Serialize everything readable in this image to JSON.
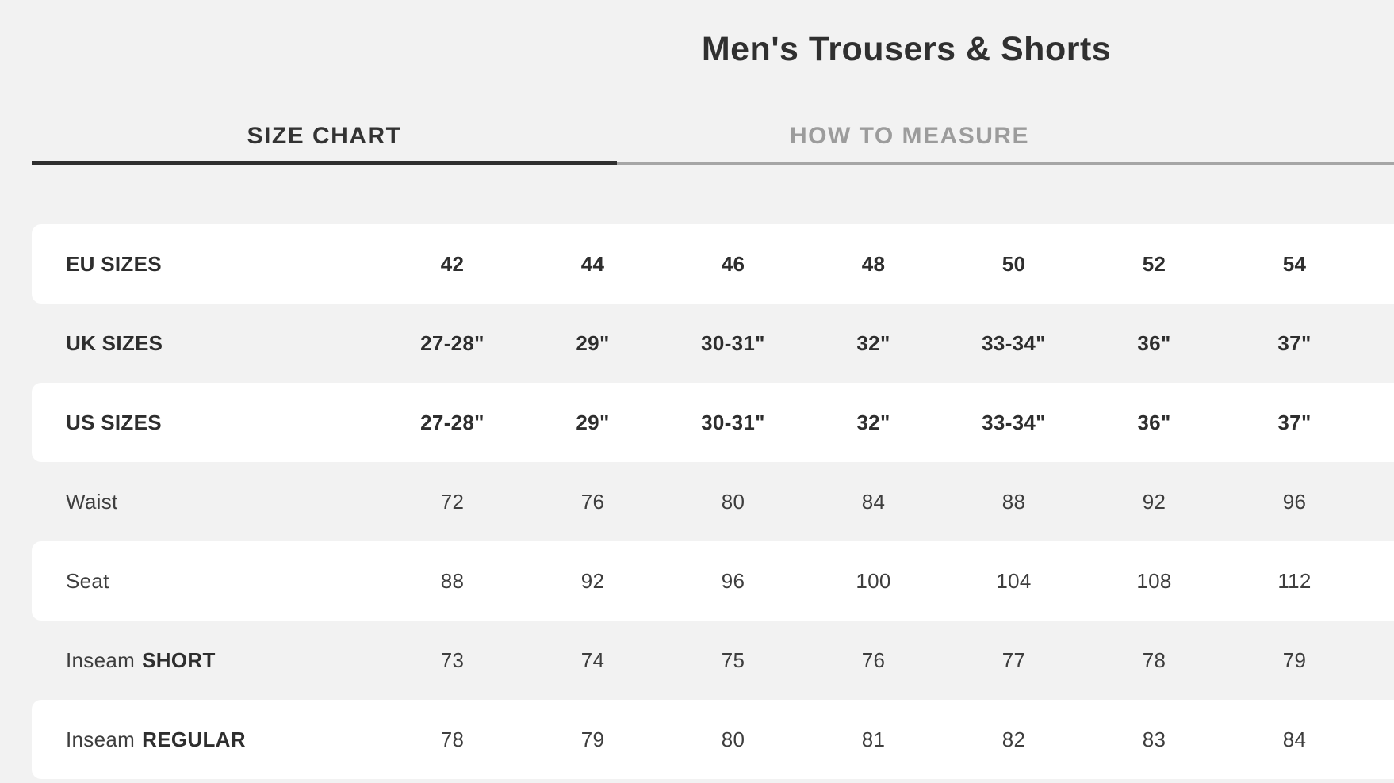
{
  "title": "Men's Trousers & Shorts",
  "tabs": [
    {
      "label": "SIZE CHART",
      "active": true
    },
    {
      "label": "HOW TO MEASURE",
      "active": false
    }
  ],
  "table": {
    "rows": [
      {
        "label": "EU SIZES",
        "label_bold_suffix": "",
        "bold": true,
        "values": [
          "42",
          "44",
          "46",
          "48",
          "50",
          "52",
          "54"
        ]
      },
      {
        "label": "UK SIZES",
        "label_bold_suffix": "",
        "bold": true,
        "values": [
          "27-28\"",
          "29\"",
          "30-31\"",
          "32\"",
          "33-34\"",
          "36\"",
          "37\""
        ]
      },
      {
        "label": "US SIZES",
        "label_bold_suffix": "",
        "bold": true,
        "values": [
          "27-28\"",
          "29\"",
          "30-31\"",
          "32\"",
          "33-34\"",
          "36\"",
          "37\""
        ]
      },
      {
        "label": "Waist",
        "label_bold_suffix": "",
        "bold": false,
        "values": [
          "72",
          "76",
          "80",
          "84",
          "88",
          "92",
          "96"
        ]
      },
      {
        "label": "Seat",
        "label_bold_suffix": "",
        "bold": false,
        "values": [
          "88",
          "92",
          "96",
          "100",
          "104",
          "108",
          "112"
        ]
      },
      {
        "label": "Inseam",
        "label_bold_suffix": "SHORT",
        "bold": false,
        "values": [
          "73",
          "74",
          "75",
          "76",
          "77",
          "78",
          "79"
        ]
      },
      {
        "label": "Inseam",
        "label_bold_suffix": "REGULAR",
        "bold": false,
        "values": [
          "78",
          "79",
          "80",
          "81",
          "82",
          "83",
          "84"
        ]
      }
    ]
  },
  "colors": {
    "page_background": "#f2f2f2",
    "row_background": "#ffffff",
    "text_dark": "#2e2e2e",
    "text_regular": "#3e3e3e",
    "tab_active": "#333333",
    "tab_inactive": "#9c9c9c",
    "underline_active": "#2f2f2f",
    "underline_inactive": "#a6a6a6"
  }
}
